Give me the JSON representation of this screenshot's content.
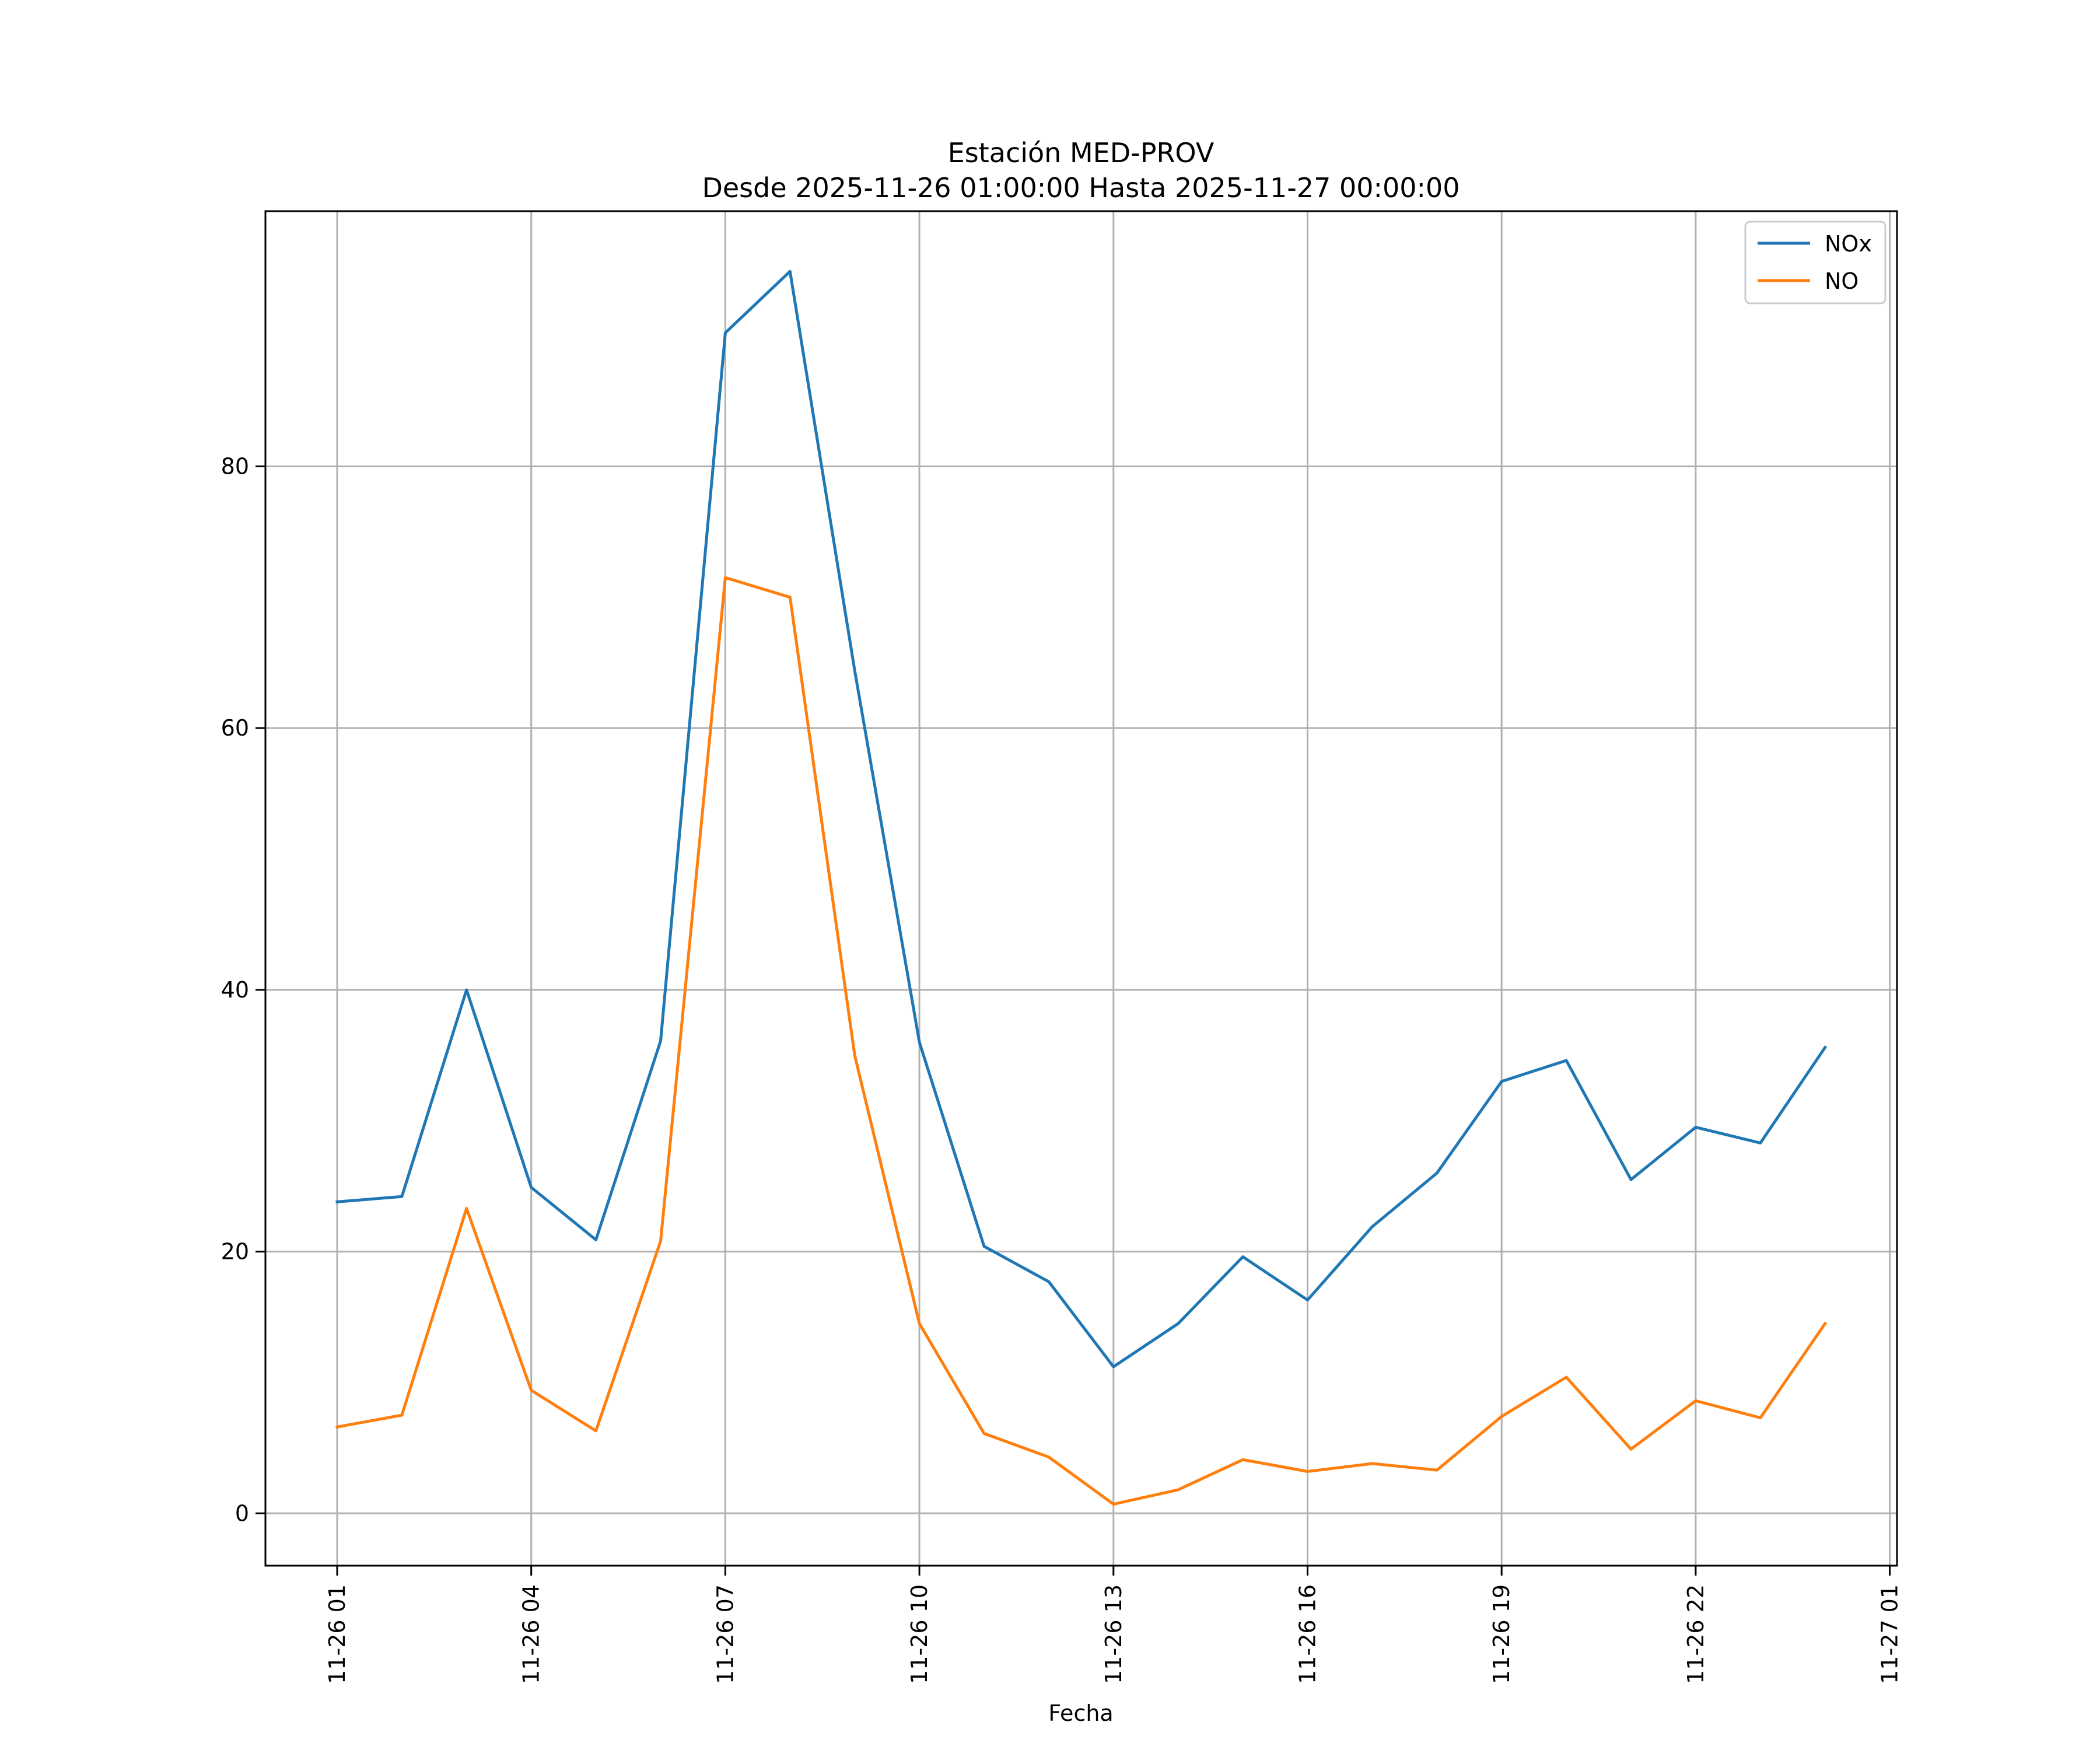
{
  "chart_data": {
    "type": "line",
    "title": "Estación MED-PROV",
    "subtitle": "Desde 2025-11-26 01:00:00 Hasta 2025-11-27 00:00:00",
    "xlabel": "Fecha",
    "ylabel": "",
    "grid": true,
    "legend_position": "top-right",
    "ylim": [
      -4,
      99.5
    ],
    "xlim": [
      0,
      24.2
    ],
    "y_ticks": [
      0,
      20,
      40,
      60,
      80
    ],
    "y_tick_labels": [
      "0",
      "20",
      "40",
      "60",
      "80"
    ],
    "x_ticks": [
      0,
      3,
      6,
      9,
      12,
      15,
      18,
      21,
      24
    ],
    "x_tick_labels": [
      "11-26 01",
      "11-26 04",
      "11-26 07",
      "11-26 10",
      "11-26 13",
      "11-26 16",
      "11-26 19",
      "11-26 22",
      "11-27 01"
    ],
    "x": [
      "11-26 01:00",
      "11-26 02:00",
      "11-26 03:00",
      "11-26 04:00",
      "11-26 05:00",
      "11-26 06:00",
      "11-26 07:00",
      "11-26 08:00",
      "11-26 09:00",
      "11-26 10:00",
      "11-26 11:00",
      "11-26 12:00",
      "11-26 13:00",
      "11-26 14:00",
      "11-26 15:00",
      "11-26 16:00",
      "11-26 17:00",
      "11-26 18:00",
      "11-26 19:00",
      "11-26 20:00",
      "11-26 21:00",
      "11-26 22:00",
      "11-26 23:00",
      "11-27 00:00"
    ],
    "series": [
      {
        "name": "NOx",
        "color": "#1f77b4",
        "values": [
          23.8,
          24.2,
          40.0,
          24.9,
          20.9,
          36.1,
          90.2,
          94.9,
          64.4,
          36.0,
          20.4,
          17.7,
          11.2,
          14.5,
          19.6,
          16.3,
          21.9,
          26.0,
          33.0,
          34.6,
          25.5,
          29.5,
          28.3,
          35.6
        ]
      },
      {
        "name": "NO",
        "color": "#ff7f0e",
        "values": [
          6.6,
          7.5,
          23.3,
          9.4,
          6.3,
          20.8,
          71.5,
          70.0,
          35.0,
          14.5,
          6.1,
          4.3,
          0.7,
          1.8,
          4.1,
          3.2,
          3.8,
          3.3,
          7.4,
          10.4,
          4.9,
          8.6,
          7.3,
          14.5
        ]
      }
    ]
  }
}
